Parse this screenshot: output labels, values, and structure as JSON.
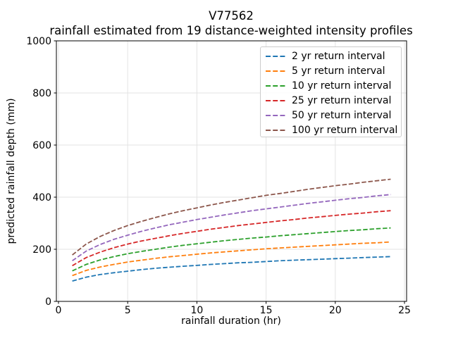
{
  "chart_data": {
    "type": "line",
    "title": "V77562\nrainfall estimated from 19 distance-weighted intensity profiles",
    "title_line1": "V77562",
    "title_line2": "rainfall estimated from 19 distance-weighted intensity profiles",
    "xlabel": "rainfall duration (hr)",
    "ylabel": "predicted rainfall depth (mm)",
    "xlim": [
      -0.153,
      25.153
    ],
    "ylim": [
      0,
      1000
    ],
    "xticks": [
      0,
      5,
      10,
      15,
      20,
      25
    ],
    "yticks": [
      0,
      200,
      400,
      600,
      800,
      1000
    ],
    "grid": true,
    "grid_color": "#e3e3e3",
    "line_style": "dashed",
    "legend_position": "upper right",
    "x": [
      1,
      2,
      3,
      4,
      5,
      6,
      7,
      8,
      9,
      10,
      11,
      12,
      13,
      14,
      15,
      16,
      17,
      18,
      19,
      20,
      21,
      22,
      23,
      24
    ],
    "series": [
      {
        "label": "2 yr return interval",
        "color": "#1f77b4",
        "values": [
          78,
          93,
          103,
          110,
          116,
          122,
          127,
          131,
          135,
          138,
          142,
          145,
          148,
          150,
          153,
          156,
          158,
          160,
          162,
          164,
          166,
          168,
          170,
          172
        ]
      },
      {
        "label": "5 yr return interval",
        "color": "#ff7f0e",
        "values": [
          99,
          119,
          132,
          142,
          151,
          158,
          165,
          171,
          176,
          181,
          186,
          190,
          194,
          198,
          202,
          205,
          208,
          211,
          214,
          217,
          220,
          223,
          225,
          228
        ]
      },
      {
        "label": "10 yr return interval",
        "color": "#2ca02c",
        "values": [
          117,
          142,
          159,
          172,
          183,
          192,
          200,
          208,
          215,
          221,
          227,
          233,
          238,
          243,
          247,
          252,
          256,
          260,
          264,
          268,
          272,
          275,
          279,
          282
        ]
      },
      {
        "label": "25 yr return interval",
        "color": "#d62728",
        "values": [
          137,
          168,
          189,
          206,
          220,
          232,
          242,
          252,
          261,
          269,
          277,
          284,
          291,
          297,
          303,
          309,
          314,
          320,
          325,
          330,
          335,
          339,
          344,
          348
        ]
      },
      {
        "label": "50 yr return interval",
        "color": "#9467bd",
        "values": [
          156,
          193,
          218,
          238,
          254,
          269,
          282,
          294,
          304,
          314,
          323,
          332,
          340,
          348,
          355,
          362,
          369,
          376,
          382,
          388,
          394,
          399,
          405,
          410
        ]
      },
      {
        "label": "100 yr return interval",
        "color": "#8c564b",
        "values": [
          178,
          220,
          249,
          272,
          291,
          307,
          322,
          336,
          348,
          359,
          370,
          380,
          389,
          398,
          407,
          414,
          422,
          430,
          437,
          444,
          450,
          457,
          463,
          469
        ]
      }
    ]
  }
}
